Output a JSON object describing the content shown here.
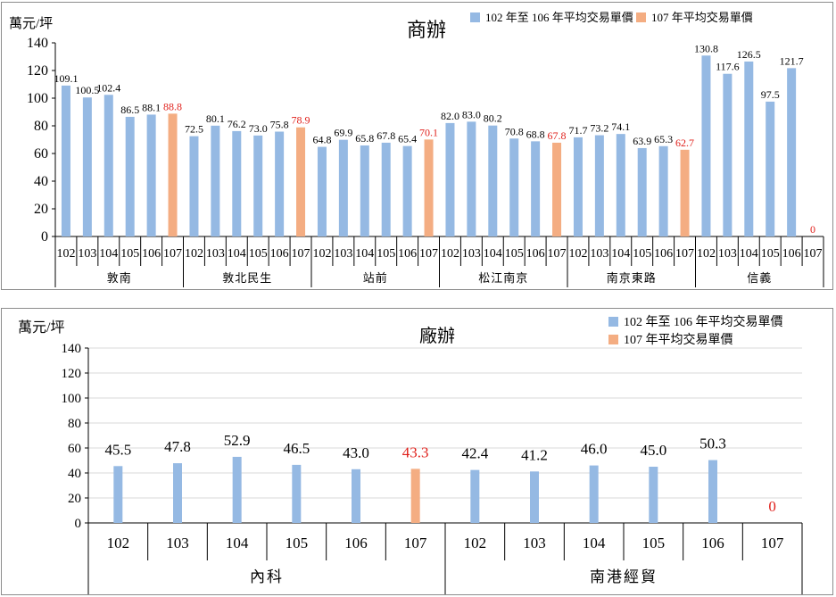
{
  "colors": {
    "series_avg": "#95b9e3",
    "series_107": "#f4ad82",
    "label_107": "#e0201b",
    "axis": "#000000",
    "frame": "#8c8c8c"
  },
  "chart_data": [
    {
      "type": "bar",
      "title": "商辦",
      "ylabel": "萬元/坪",
      "ylim": [
        0,
        140
      ],
      "yticks": [
        0,
        20,
        40,
        60,
        80,
        100,
        120,
        140
      ],
      "grid": false,
      "legend_position": "top-right",
      "legend": [
        {
          "label": "102 年至 106 年平均交易單價",
          "series": "avg"
        },
        {
          "label": "107 年平均交易單價",
          "series": "y107"
        }
      ],
      "groups": [
        {
          "name": "敦南",
          "years": [
            "102",
            "103",
            "104",
            "105",
            "106",
            "107"
          ],
          "values": [
            109.1,
            100.5,
            102.4,
            86.5,
            88.1,
            88.8
          ],
          "labels": [
            "109.1",
            "100.5",
            "102.4",
            "86.5",
            "88.1",
            "88.8"
          ]
        },
        {
          "name": "敦北民生",
          "years": [
            "102",
            "103",
            "104",
            "105",
            "106",
            "107"
          ],
          "values": [
            72.5,
            80.1,
            76.2,
            73.0,
            75.8,
            78.9
          ],
          "labels": [
            "72.5",
            "80.1",
            "76.2",
            "73.0",
            "75.8",
            "78.9"
          ]
        },
        {
          "name": "站前",
          "years": [
            "102",
            "103",
            "104",
            "105",
            "106",
            "107"
          ],
          "values": [
            64.8,
            69.9,
            65.8,
            67.8,
            65.4,
            70.1
          ],
          "labels": [
            "64.8",
            "69.9",
            "65.8",
            "67.8",
            "65.4",
            "70.1"
          ]
        },
        {
          "name": "松江南京",
          "years": [
            "102",
            "103",
            "104",
            "105",
            "106",
            "107"
          ],
          "values": [
            82.0,
            83.0,
            80.2,
            70.8,
            68.8,
            67.8
          ],
          "labels": [
            "82.0",
            "83.0",
            "80.2",
            "70.8",
            "68.8",
            "67.8"
          ]
        },
        {
          "name": "南京東路",
          "years": [
            "102",
            "103",
            "104",
            "105",
            "106",
            "107"
          ],
          "values": [
            71.7,
            73.2,
            74.1,
            63.9,
            65.3,
            62.7
          ],
          "labels": [
            "71.7",
            "73.2",
            "74.1",
            "63.9",
            "65.3",
            "62.7"
          ]
        },
        {
          "name": "信義",
          "years": [
            "102",
            "103",
            "104",
            "105",
            "106",
            "107"
          ],
          "values": [
            130.8,
            117.6,
            126.5,
            97.5,
            121.7,
            0
          ],
          "labels": [
            "130.8",
            "117.6",
            "126.5",
            "97.5",
            "121.7",
            "0"
          ]
        }
      ]
    },
    {
      "type": "bar",
      "title": "廠辦",
      "ylabel": "萬元/坪",
      "ylim": [
        0,
        140
      ],
      "yticks": [
        0,
        20,
        40,
        60,
        80,
        100,
        120,
        140
      ],
      "grid": true,
      "legend_position": "top-right",
      "legend": [
        {
          "label": "102 年至 106 年平均交易單價",
          "series": "avg"
        },
        {
          "label": "107 年平均交易單價",
          "series": "y107"
        }
      ],
      "groups": [
        {
          "name": "內科",
          "years": [
            "102",
            "103",
            "104",
            "105",
            "106",
            "107"
          ],
          "values": [
            45.5,
            47.8,
            52.9,
            46.5,
            43.0,
            43.3
          ],
          "labels": [
            "45.5",
            "47.8",
            "52.9",
            "46.5",
            "43.0",
            "43.3"
          ]
        },
        {
          "name": "南港經貿",
          "years": [
            "102",
            "103",
            "104",
            "105",
            "106",
            "107"
          ],
          "values": [
            42.4,
            41.2,
            46.0,
            45.0,
            50.3,
            0
          ],
          "labels": [
            "42.4",
            "41.2",
            "46.0",
            "45.0",
            "50.3",
            "0"
          ]
        }
      ]
    }
  ]
}
